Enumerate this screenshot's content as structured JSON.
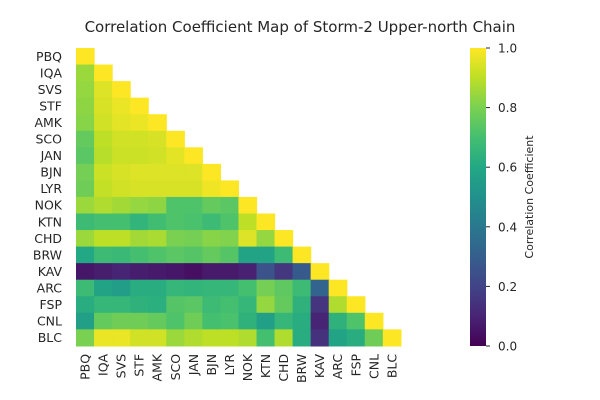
{
  "chart_data": {
    "type": "heatmap",
    "title": "Correlation Coefficient Map of Storm-2 Upper-north Chain",
    "mask": "upper-triangle",
    "labels": [
      "PBQ",
      "IQA",
      "SVS",
      "STF",
      "AMK",
      "SCO",
      "JAN",
      "BJN",
      "LYR",
      "NOK",
      "KTN",
      "CHD",
      "BRW",
      "KAV",
      "ARC",
      "FSP",
      "CNL",
      "BLC"
    ],
    "matrix": [
      [
        1.0
      ],
      [
        0.85,
        1.0
      ],
      [
        0.84,
        0.95,
        1.0
      ],
      [
        0.83,
        0.94,
        0.97,
        1.0
      ],
      [
        0.82,
        0.93,
        0.96,
        0.97,
        1.0
      ],
      [
        0.76,
        0.9,
        0.93,
        0.93,
        0.94,
        1.0
      ],
      [
        0.74,
        0.89,
        0.92,
        0.92,
        0.93,
        0.96,
        1.0
      ],
      [
        0.79,
        0.92,
        0.94,
        0.95,
        0.95,
        0.95,
        0.95,
        1.0
      ],
      [
        0.78,
        0.91,
        0.93,
        0.94,
        0.94,
        0.94,
        0.94,
        0.98,
        1.0
      ],
      [
        0.85,
        0.88,
        0.86,
        0.84,
        0.83,
        0.72,
        0.72,
        0.76,
        0.74,
        1.0
      ],
      [
        0.68,
        0.7,
        0.7,
        0.65,
        0.69,
        0.72,
        0.71,
        0.68,
        0.72,
        0.9,
        1.0
      ],
      [
        0.85,
        0.9,
        0.9,
        0.86,
        0.87,
        0.8,
        0.79,
        0.82,
        0.81,
        0.95,
        0.84,
        1.0
      ],
      [
        0.6,
        0.68,
        0.67,
        0.7,
        0.72,
        0.74,
        0.73,
        0.76,
        0.73,
        0.58,
        0.58,
        0.68,
        1.0
      ],
      [
        0.06,
        0.08,
        0.1,
        0.08,
        0.07,
        0.06,
        0.04,
        0.07,
        0.07,
        0.09,
        0.25,
        0.16,
        0.28,
        1.0
      ],
      [
        0.68,
        0.58,
        0.55,
        0.62,
        0.62,
        0.66,
        0.65,
        0.66,
        0.66,
        0.7,
        0.79,
        0.75,
        0.68,
        0.32,
        1.0
      ],
      [
        0.62,
        0.66,
        0.66,
        0.64,
        0.63,
        0.73,
        0.74,
        0.68,
        0.7,
        0.66,
        0.84,
        0.76,
        0.64,
        0.15,
        0.88,
        1.0
      ],
      [
        0.56,
        0.76,
        0.78,
        0.78,
        0.76,
        0.72,
        0.78,
        0.7,
        0.71,
        0.64,
        0.56,
        0.66,
        0.62,
        0.1,
        0.64,
        0.72,
        1.0
      ],
      [
        0.8,
        0.97,
        0.97,
        0.93,
        0.93,
        0.85,
        0.88,
        0.9,
        0.9,
        0.88,
        0.7,
        0.88,
        0.62,
        0.14,
        0.58,
        0.62,
        0.78,
        1.0
      ]
    ],
    "colorbar": {
      "label": "Correlation Coefficient",
      "range": [
        0,
        1
      ],
      "ticks": [
        "0.0",
        "0.2",
        "0.4",
        "0.6",
        "0.8",
        "1.0"
      ],
      "colormap": "viridis"
    }
  }
}
